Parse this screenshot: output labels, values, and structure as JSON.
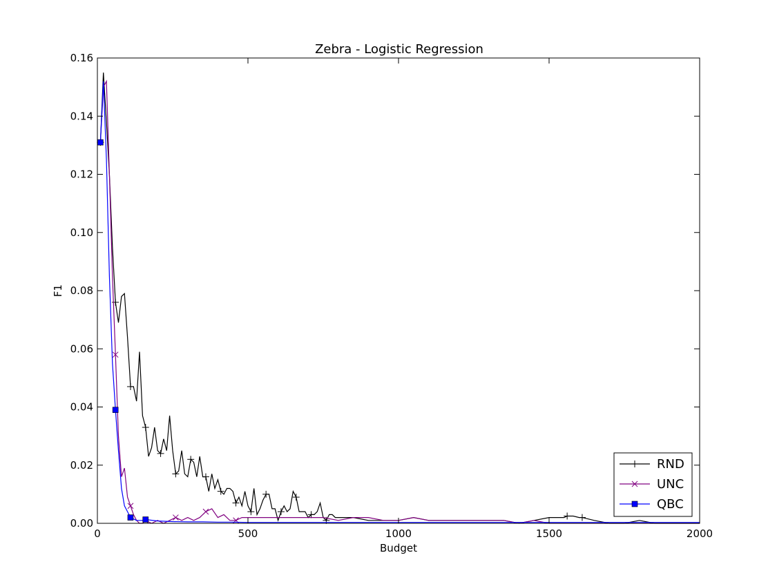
{
  "chart_data": {
    "type": "line",
    "title": "Zebra - Logistic Regression",
    "xlabel": "Budget",
    "ylabel": "F1",
    "xlim": [
      0,
      2000
    ],
    "ylim": [
      0,
      0.16
    ],
    "xticks": [
      0,
      500,
      1000,
      1500,
      2000
    ],
    "xtick_labels": [
      "0",
      "500",
      "1000",
      "1500",
      "2000"
    ],
    "yticks": [
      0,
      0.02,
      0.04,
      0.06,
      0.08,
      0.1,
      0.12,
      0.14,
      0.16
    ],
    "ytick_labels": [
      "0.00",
      "0.02",
      "0.04",
      "0.06",
      "0.08",
      "0.10",
      "0.12",
      "0.14",
      "0.16"
    ],
    "grid": false,
    "legend_position": "bottom-right",
    "series": [
      {
        "name": "RND",
        "color": "#000000",
        "marker": "plus",
        "x": [
          10,
          20,
          30,
          40,
          50,
          60,
          70,
          80,
          90,
          100,
          110,
          120,
          130,
          140,
          150,
          160,
          170,
          180,
          190,
          200,
          210,
          220,
          230,
          240,
          250,
          260,
          270,
          280,
          290,
          300,
          310,
          320,
          330,
          340,
          350,
          360,
          370,
          380,
          390,
          400,
          410,
          420,
          430,
          440,
          450,
          460,
          470,
          480,
          490,
          500,
          510,
          520,
          530,
          540,
          550,
          560,
          570,
          580,
          590,
          600,
          610,
          620,
          630,
          640,
          650,
          660,
          670,
          680,
          690,
          700,
          710,
          720,
          730,
          740,
          750,
          760,
          770,
          780,
          790,
          800,
          850,
          900,
          950,
          1000,
          1050,
          1100,
          1150,
          1200,
          1250,
          1300,
          1350,
          1400,
          1450,
          1500,
          1550,
          1560,
          1580,
          1600,
          1610,
          1650,
          1700,
          1750,
          1800,
          1850,
          1900,
          1950,
          2000
        ],
        "y": [
          0.131,
          0.155,
          0.138,
          0.12,
          0.095,
          0.076,
          0.069,
          0.078,
          0.079,
          0.064,
          0.047,
          0.047,
          0.042,
          0.059,
          0.037,
          0.033,
          0.023,
          0.026,
          0.033,
          0.025,
          0.024,
          0.029,
          0.025,
          0.037,
          0.025,
          0.017,
          0.018,
          0.025,
          0.017,
          0.016,
          0.022,
          0.021,
          0.016,
          0.023,
          0.016,
          0.016,
          0.011,
          0.017,
          0.012,
          0.015,
          0.011,
          0.01,
          0.012,
          0.012,
          0.011,
          0.007,
          0.009,
          0.006,
          0.011,
          0.006,
          0.004,
          0.012,
          0.003,
          0.005,
          0.008,
          0.01,
          0.01,
          0.005,
          0.005,
          0.001,
          0.004,
          0.006,
          0.004,
          0.005,
          0.011,
          0.009,
          0.004,
          0.004,
          0.004,
          0.002,
          0.003,
          0.003,
          0.004,
          0.007,
          0.002,
          0.001,
          0.003,
          0.003,
          0.002,
          0.002,
          0.002,
          0.001,
          0.001,
          0.001,
          0.002,
          0.001,
          0.001,
          0.001,
          0.001,
          0.001,
          0.001,
          0.0,
          0.001,
          0.002,
          0.002,
          0.0025,
          0.0025,
          0.002,
          0.002,
          0.001,
          0.0,
          0.0,
          0.001,
          0.0,
          0.0,
          0.0,
          0.0
        ]
      },
      {
        "name": "UNC",
        "color": "#800080",
        "marker": "x",
        "x": [
          10,
          20,
          30,
          40,
          50,
          60,
          70,
          80,
          90,
          100,
          110,
          120,
          130,
          140,
          150,
          160,
          180,
          200,
          220,
          240,
          260,
          280,
          300,
          320,
          340,
          360,
          380,
          400,
          420,
          440,
          460,
          480,
          500,
          550,
          600,
          650,
          700,
          750,
          800,
          850,
          900,
          950,
          1000,
          1050,
          1100,
          1150,
          1200,
          1250,
          1300,
          1350,
          1400,
          1450,
          1500,
          1550,
          1600,
          1650,
          1700,
          1750,
          1800,
          1850,
          1900,
          1950,
          2000
        ],
        "y": [
          0.131,
          0.15,
          0.152,
          0.12,
          0.085,
          0.058,
          0.03,
          0.016,
          0.019,
          0.009,
          0.006,
          0.003,
          0.001,
          0.0,
          0.0,
          0.001,
          0.0,
          0.001,
          0.0,
          0.001,
          0.002,
          0.001,
          0.002,
          0.001,
          0.002,
          0.004,
          0.005,
          0.002,
          0.003,
          0.001,
          0.001,
          0.002,
          0.002,
          0.002,
          0.002,
          0.002,
          0.002,
          0.002,
          0.001,
          0.002,
          0.002,
          0.001,
          0.001,
          0.002,
          0.001,
          0.001,
          0.001,
          0.001,
          0.001,
          0.001,
          0.0,
          0.001,
          0.0,
          0.0,
          0.0,
          0.0,
          0.0,
          0.0,
          0.0,
          0.0,
          0.0,
          0.0,
          0.0
        ]
      },
      {
        "name": "QBC",
        "color": "#0000ff",
        "marker": "square",
        "x": [
          10,
          20,
          30,
          40,
          50,
          60,
          70,
          80,
          90,
          100,
          110,
          120,
          130,
          140,
          150,
          160,
          200,
          250,
          300,
          350,
          400,
          450,
          500,
          550,
          600,
          650,
          700,
          750,
          800,
          850,
          900,
          950,
          1000,
          1050,
          1100,
          1150,
          1200,
          1250,
          1300,
          1350,
          1400,
          1450,
          1500,
          1550,
          1600,
          1650,
          1700,
          1750,
          1800,
          1850,
          1900,
          1950,
          2000
        ],
        "y": [
          0.131,
          0.152,
          0.125,
          0.085,
          0.055,
          0.039,
          0.025,
          0.012,
          0.006,
          0.004,
          0.002,
          0.0015,
          0.001,
          0.001,
          0.001,
          0.0013,
          0.0008,
          0.0006,
          0.0005,
          0.0005,
          0.0004,
          0.0004,
          0.0003,
          0.0003,
          0.0003,
          0.0003,
          0.0003,
          0.0003,
          0.0003,
          0.0003,
          0.0003,
          0.0003,
          0.0003,
          0.0003,
          0.0003,
          0.0003,
          0.0003,
          0.0003,
          0.0003,
          0.0003,
          0.0003,
          0.0003,
          0.0003,
          0.0003,
          0.0003,
          0.0003,
          0.0003,
          0.0003,
          0.0003,
          0.0003,
          0.0003,
          0.0003,
          0.0003
        ]
      }
    ]
  }
}
